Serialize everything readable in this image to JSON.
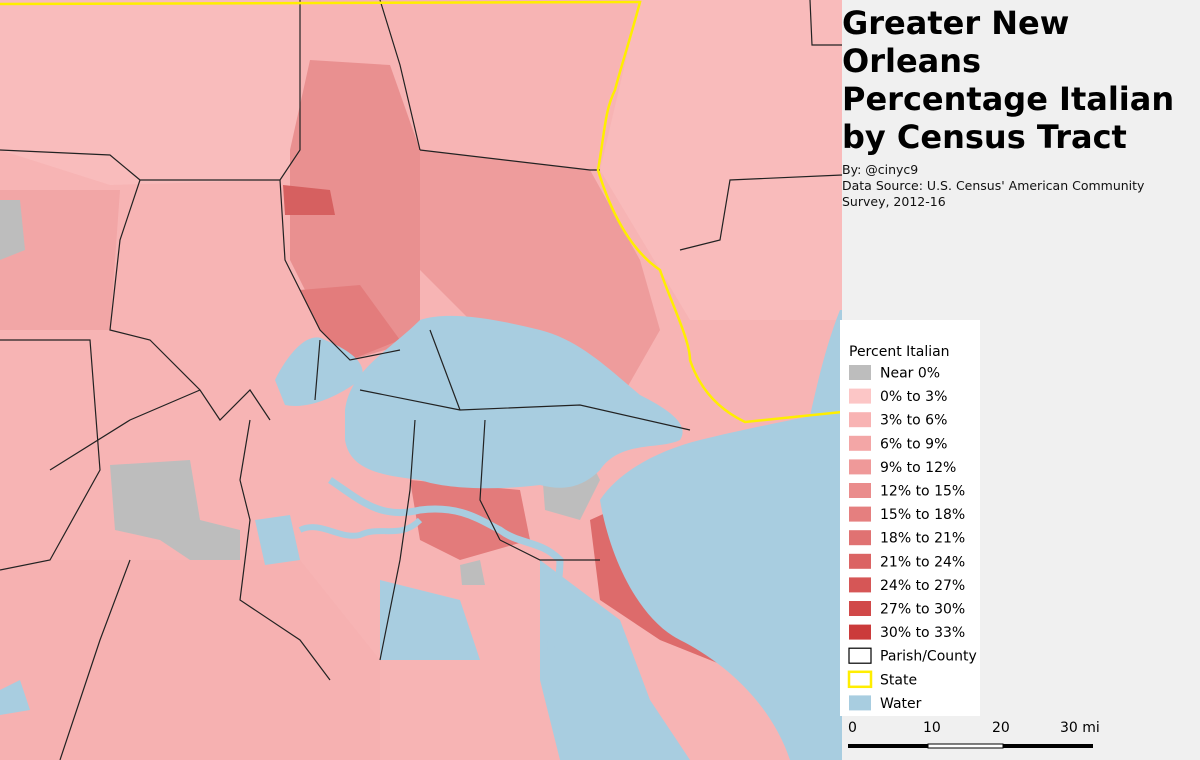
{
  "header": {
    "title": "Greater New Orleans Percentage Italian by Census Tract",
    "byline": "By: @cinyc9",
    "source": "Data Source: U.S. Census' American Community Survey, 2012-16"
  },
  "legend": {
    "title": "Percent Italian",
    "items": [
      {
        "label": "Near 0%",
        "color": "#bdbdbd",
        "style": "fill"
      },
      {
        "label": "0% to 3%",
        "color": "#fcc6c6",
        "style": "fill"
      },
      {
        "label": "3% to 6%",
        "color": "#f8b3b3",
        "style": "fill"
      },
      {
        "label": "6% to 9%",
        "color": "#f3a6a6",
        "style": "fill"
      },
      {
        "label": "9% to 12%",
        "color": "#ef9999",
        "style": "fill"
      },
      {
        "label": "12% to 15%",
        "color": "#ea8c8c",
        "style": "fill"
      },
      {
        "label": "15% to 18%",
        "color": "#e57f7f",
        "style": "fill"
      },
      {
        "label": "18% to 21%",
        "color": "#e07272",
        "style": "fill"
      },
      {
        "label": "21% to 24%",
        "color": "#db6464",
        "style": "fill"
      },
      {
        "label": "24% to 27%",
        "color": "#d65656",
        "style": "fill"
      },
      {
        "label": "27% to 30%",
        "color": "#d14949",
        "style": "fill"
      },
      {
        "label": "30% to 33%",
        "color": "#cb3b3b",
        "style": "fill"
      },
      {
        "label": "Parish/County",
        "color": "#000000",
        "style": "outline"
      },
      {
        "label": "State",
        "color": "#ffee00",
        "style": "outline"
      },
      {
        "label": "Water",
        "color": "#a8cde0",
        "style": "fill"
      }
    ]
  },
  "scale_bar": {
    "labels": [
      "0",
      "10",
      "20",
      "30 mi"
    ]
  }
}
